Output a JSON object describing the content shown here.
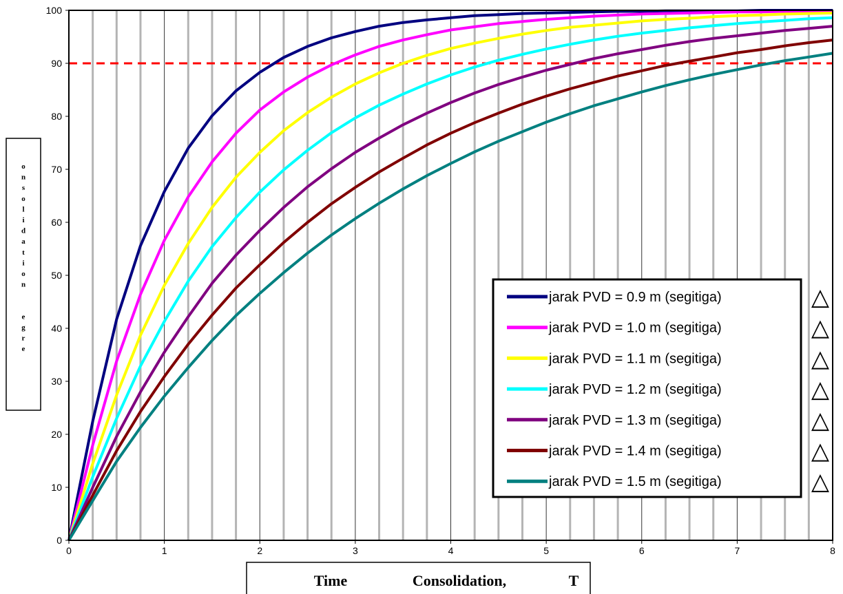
{
  "chart_data": {
    "type": "line",
    "title": "",
    "xlabel_words": [
      "Time",
      "Consolidation,",
      "T"
    ],
    "ylabel_letters": [
      "o",
      "n",
      "s",
      "o",
      "l",
      "i",
      "d",
      "a",
      "t",
      "i",
      "o",
      "n",
      "",
      "",
      "e",
      "g",
      "r",
      "e"
    ],
    "xlim": [
      0,
      8
    ],
    "ylim": [
      0,
      100
    ],
    "x_tick_labels": [
      "0",
      "1",
      "2",
      "3",
      "4",
      "5",
      "6",
      "7",
      "8"
    ],
    "y_tick_labels": [
      "0",
      "10",
      "20",
      "30",
      "40",
      "50",
      "60",
      "70",
      "80",
      "90",
      "100"
    ],
    "grid_x_step": 0.25,
    "reference_line": {
      "y": 90,
      "color": "#ff0000",
      "style": "dashed"
    },
    "legend_position": "bottom-right",
    "legend_symbol": "△",
    "x": [
      0,
      0.25,
      0.5,
      0.75,
      1,
      1.25,
      1.5,
      1.75,
      2,
      2.25,
      2.5,
      2.75,
      3,
      3.25,
      3.5,
      3.75,
      4,
      4.25,
      4.5,
      4.75,
      5,
      5.25,
      5.5,
      5.75,
      6,
      6.25,
      6.5,
      6.75,
      7,
      7.25,
      7.5,
      7.75,
      8
    ],
    "series": [
      {
        "name": "jarak PVD = 0.9 m (segitiga)",
        "color": "#000080",
        "values": [
          0,
          22.5,
          41.7,
          55.6,
          65.8,
          74.0,
          80.1,
          84.8,
          88.3,
          91.1,
          93.2,
          94.8,
          96.0,
          97.0,
          97.7,
          98.2,
          98.6,
          99.0,
          99.2,
          99.4,
          99.5,
          99.6,
          99.7,
          99.8,
          99.8,
          99.9,
          99.9,
          99.9,
          99.9,
          100,
          100,
          100,
          100
        ]
      },
      {
        "name": "jarak PVD = 1.0 m (segitiga)",
        "color": "#ff00ff",
        "values": [
          0,
          18.0,
          33.8,
          46.4,
          56.6,
          64.8,
          71.4,
          76.8,
          81.2,
          84.6,
          87.4,
          89.7,
          91.6,
          93.2,
          94.4,
          95.4,
          96.3,
          96.9,
          97.5,
          97.9,
          98.3,
          98.6,
          98.9,
          99.1,
          99.3,
          99.4,
          99.5,
          99.6,
          99.7,
          99.7,
          99.8,
          99.8,
          99.8
        ]
      },
      {
        "name": "jarak PVD = 1.1 m (segitiga)",
        "color": "#ffff00",
        "values": [
          0,
          14.5,
          27.4,
          38.7,
          48.1,
          56.0,
          62.8,
          68.5,
          73.2,
          77.3,
          80.7,
          83.6,
          86.1,
          88.2,
          90.0,
          91.5,
          92.8,
          93.8,
          94.7,
          95.5,
          96.2,
          96.8,
          97.2,
          97.6,
          98.0,
          98.3,
          98.5,
          98.8,
          99.0,
          99.1,
          99.3,
          99.4,
          99.5
        ]
      },
      {
        "name": "jarak PVD = 1.2 m (segitiga)",
        "color": "#00ffff",
        "values": [
          0,
          12.0,
          23.0,
          32.9,
          41.3,
          48.9,
          55.4,
          60.9,
          65.7,
          69.9,
          73.6,
          76.9,
          79.7,
          82.1,
          84.2,
          86.1,
          87.8,
          89.3,
          90.6,
          91.7,
          92.7,
          93.6,
          94.4,
          95.1,
          95.7,
          96.2,
          96.7,
          97.1,
          97.5,
          97.8,
          98.1,
          98.4,
          98.6
        ]
      },
      {
        "name": "jarak PVD = 1.3 m (segitiga)",
        "color": "#800080",
        "values": [
          0,
          10.0,
          19.6,
          28.0,
          35.5,
          42.2,
          48.5,
          53.8,
          58.5,
          62.8,
          66.7,
          70.1,
          73.2,
          75.9,
          78.4,
          80.6,
          82.6,
          84.4,
          86.0,
          87.4,
          88.7,
          89.8,
          90.9,
          91.8,
          92.6,
          93.4,
          94.1,
          94.7,
          95.2,
          95.7,
          96.2,
          96.6,
          97.0
        ]
      },
      {
        "name": "jarak PVD = 1.4 m (segitiga)",
        "color": "#800000",
        "values": [
          0,
          8.5,
          16.9,
          24.3,
          30.9,
          37.0,
          42.5,
          47.6,
          52.0,
          56.2,
          60.0,
          63.5,
          66.6,
          69.5,
          72.1,
          74.6,
          76.8,
          78.8,
          80.6,
          82.3,
          83.8,
          85.2,
          86.4,
          87.6,
          88.6,
          89.6,
          90.4,
          91.2,
          92.0,
          92.6,
          93.3,
          93.9,
          94.4
        ]
      },
      {
        "name": "jarak PVD = 1.5 m (segitiga)",
        "color": "#008080",
        "values": [
          0,
          7.5,
          14.9,
          21.3,
          27.2,
          32.6,
          37.7,
          42.4,
          46.6,
          50.5,
          54.2,
          57.6,
          60.7,
          63.6,
          66.3,
          68.8,
          71.1,
          73.3,
          75.3,
          77.1,
          78.9,
          80.5,
          82.0,
          83.3,
          84.6,
          85.8,
          86.9,
          87.9,
          88.8,
          89.7,
          90.5,
          91.2,
          91.9
        ]
      }
    ]
  }
}
